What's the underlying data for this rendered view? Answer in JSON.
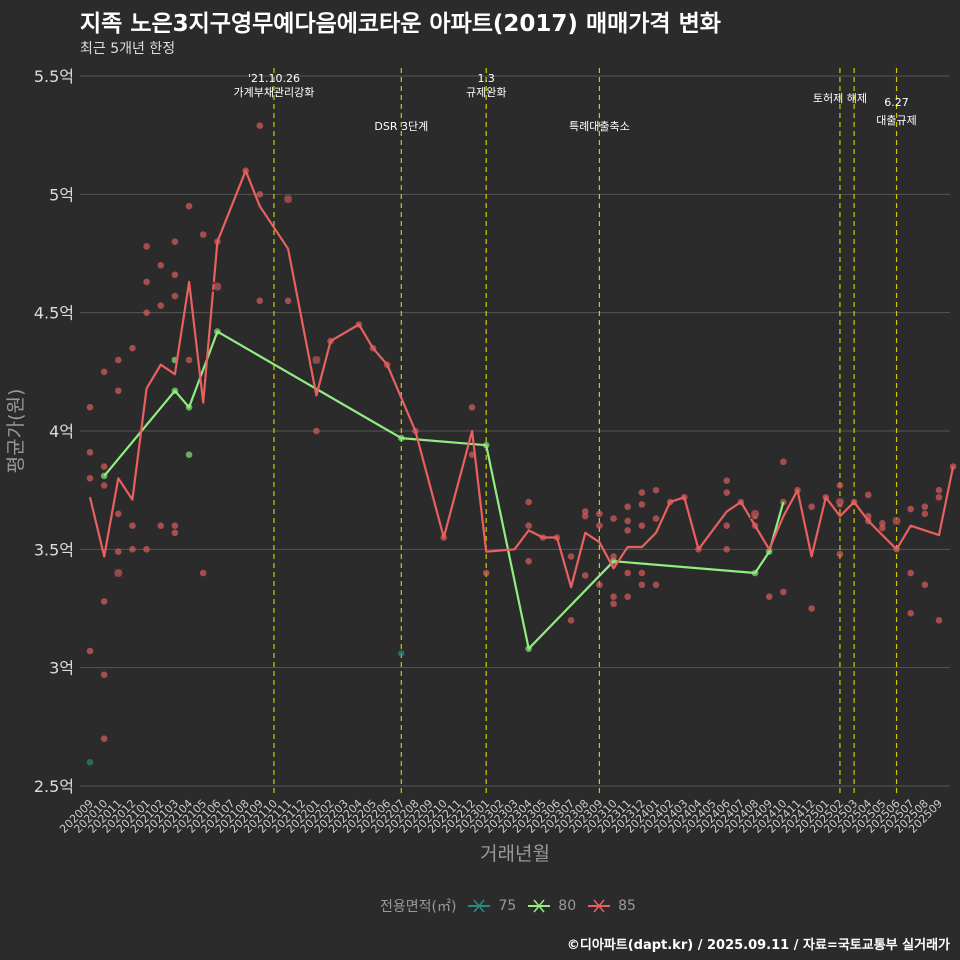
{
  "header": {
    "title": "지족 노은3지구영무예다음에코타운 아파트(2017) 매매가격 변화",
    "subtitle": "최근 5개년 한정"
  },
  "caption": "©디아파트(dapt.kr) / 2025.09.11 / 자료=국토교통부 실거래가",
  "colors": {
    "75": "#2a8a80",
    "80": "#90ee80",
    "85": "#e86060",
    "background": "#2b2b2b",
    "grid": "#555555",
    "event_line": "#cccc00"
  },
  "chart_data": {
    "type": "line",
    "xlabel": "거래년월",
    "ylabel": "평균가(원)",
    "ylim": [
      2.5,
      5.5
    ],
    "y_ticks": [
      "2.5억",
      "3억",
      "3.5억",
      "4억",
      "4.5억",
      "5억",
      "5.5억"
    ],
    "categories": [
      "202009",
      "202010",
      "202011",
      "202012",
      "202101",
      "202102",
      "202103",
      "202104",
      "202105",
      "202106",
      "202107",
      "202108",
      "202109",
      "202110",
      "202111",
      "202112",
      "202201",
      "202202",
      "202203",
      "202204",
      "202205",
      "202206",
      "202207",
      "202208",
      "202209",
      "202210",
      "202211",
      "202212",
      "202301",
      "202302",
      "202303",
      "202304",
      "202305",
      "202306",
      "202307",
      "202308",
      "202309",
      "202310",
      "202311",
      "202312",
      "202401",
      "202402",
      "202403",
      "202404",
      "202405",
      "202406",
      "202407",
      "202408",
      "202409",
      "202410",
      "202411",
      "202412",
      "202501",
      "202502",
      "202503",
      "202504",
      "202505",
      "202506",
      "202507",
      "202508",
      "202509"
    ],
    "legend_title": "전용면적(㎡)",
    "series": [
      {
        "name": "75",
        "line": [],
        "points": [
          [
            0,
            2.6
          ],
          [
            22,
            3.06
          ]
        ],
        "x_marks": []
      },
      {
        "name": "80",
        "line": [
          [
            1,
            3.81
          ],
          [
            6,
            4.17
          ],
          [
            7,
            4.1
          ],
          [
            9,
            4.42
          ],
          [
            22,
            3.97
          ],
          [
            28,
            3.94
          ],
          [
            31,
            3.08
          ],
          [
            37,
            3.45
          ],
          [
            47,
            3.4
          ],
          [
            48,
            3.49
          ],
          [
            49,
            3.7
          ]
        ],
        "points": [
          [
            1,
            3.81
          ],
          [
            6,
            4.17
          ],
          [
            6,
            4.3
          ],
          [
            7,
            4.1
          ],
          [
            7,
            3.9
          ],
          [
            9,
            4.42
          ],
          [
            22,
            3.97
          ],
          [
            28,
            3.94
          ],
          [
            31,
            3.08
          ],
          [
            37,
            3.45
          ],
          [
            47,
            3.4
          ],
          [
            48,
            3.49
          ]
        ],
        "x_marks": []
      },
      {
        "name": "85",
        "line": [
          [
            0,
            3.72
          ],
          [
            1,
            3.47
          ],
          [
            2,
            3.8
          ],
          [
            3,
            3.71
          ],
          [
            4,
            4.18
          ],
          [
            5,
            4.28
          ],
          [
            6,
            4.24
          ],
          [
            7,
            4.63
          ],
          [
            8,
            4.12
          ],
          [
            9,
            4.8
          ],
          [
            11,
            5.1
          ],
          [
            12,
            4.95
          ],
          [
            14,
            4.77
          ],
          [
            16,
            4.15
          ],
          [
            17,
            4.38
          ],
          [
            19,
            4.45
          ],
          [
            20,
            4.35
          ],
          [
            21,
            4.28
          ],
          [
            23,
            4.0
          ],
          [
            25,
            3.55
          ],
          [
            27,
            4.0
          ],
          [
            28,
            3.49
          ],
          [
            30,
            3.5
          ],
          [
            31,
            3.58
          ],
          [
            32,
            3.55
          ],
          [
            33,
            3.55
          ],
          [
            34,
            3.34
          ],
          [
            35,
            3.57
          ],
          [
            36,
            3.53
          ],
          [
            37,
            3.42
          ],
          [
            38,
            3.51
          ],
          [
            39,
            3.51
          ],
          [
            40,
            3.57
          ],
          [
            41,
            3.7
          ],
          [
            42,
            3.72
          ],
          [
            43,
            3.5
          ],
          [
            45,
            3.66
          ],
          [
            46,
            3.7
          ],
          [
            47,
            3.6
          ],
          [
            48,
            3.5
          ],
          [
            49,
            3.64
          ],
          [
            50,
            3.75
          ],
          [
            51,
            3.47
          ],
          [
            52,
            3.72
          ],
          [
            53,
            3.64
          ],
          [
            54,
            3.7
          ],
          [
            55,
            3.62
          ],
          [
            56,
            3.56
          ],
          [
            57,
            3.5
          ],
          [
            58,
            3.6
          ],
          [
            60,
            3.56
          ],
          [
            61,
            3.85
          ]
        ],
        "points": [
          [
            0,
            4.1
          ],
          [
            0,
            3.91
          ],
          [
            0,
            3.8
          ],
          [
            0,
            3.07
          ],
          [
            1,
            4.25
          ],
          [
            1,
            3.85
          ],
          [
            1,
            3.77
          ],
          [
            1,
            3.28
          ],
          [
            1,
            2.97
          ],
          [
            1,
            2.7
          ],
          [
            2,
            4.3
          ],
          [
            2,
            4.17
          ],
          [
            2,
            3.65
          ],
          [
            2,
            3.49
          ],
          [
            3,
            4.35
          ],
          [
            3,
            3.6
          ],
          [
            3,
            3.5
          ],
          [
            4,
            4.78
          ],
          [
            4,
            4.63
          ],
          [
            4,
            4.5
          ],
          [
            4,
            3.5
          ],
          [
            5,
            4.7
          ],
          [
            5,
            4.53
          ],
          [
            5,
            3.6
          ],
          [
            6,
            4.8
          ],
          [
            6,
            4.66
          ],
          [
            6,
            4.57
          ],
          [
            6,
            3.6
          ],
          [
            6,
            3.57
          ],
          [
            7,
            4.95
          ],
          [
            7,
            4.3
          ],
          [
            8,
            4.83
          ],
          [
            8,
            3.4
          ],
          [
            9,
            4.8
          ],
          [
            11,
            5.1
          ],
          [
            12,
            5.29
          ],
          [
            12,
            5.0
          ],
          [
            12,
            4.55
          ],
          [
            14,
            4.55
          ],
          [
            16,
            4.0
          ],
          [
            17,
            4.38
          ],
          [
            19,
            4.45
          ],
          [
            20,
            4.35
          ],
          [
            21,
            4.28
          ],
          [
            23,
            4.0
          ],
          [
            25,
            3.55
          ],
          [
            27,
            4.1
          ],
          [
            27,
            3.9
          ],
          [
            28,
            3.4
          ],
          [
            31,
            3.7
          ],
          [
            31,
            3.6
          ],
          [
            31,
            3.45
          ],
          [
            32,
            3.55
          ],
          [
            33,
            3.55
          ],
          [
            34,
            3.47
          ],
          [
            34,
            3.2
          ],
          [
            35,
            3.66
          ],
          [
            35,
            3.64
          ],
          [
            35,
            3.39
          ],
          [
            36,
            3.65
          ],
          [
            36,
            3.6
          ],
          [
            36,
            3.35
          ],
          [
            37,
            3.63
          ],
          [
            37,
            3.47
          ],
          [
            37,
            3.3
          ],
          [
            37,
            3.27
          ],
          [
            38,
            3.68
          ],
          [
            38,
            3.62
          ],
          [
            38,
            3.58
          ],
          [
            38,
            3.4
          ],
          [
            38,
            3.3
          ],
          [
            39,
            3.74
          ],
          [
            39,
            3.69
          ],
          [
            39,
            3.6
          ],
          [
            39,
            3.4
          ],
          [
            39,
            3.35
          ],
          [
            40,
            3.75
          ],
          [
            40,
            3.63
          ],
          [
            40,
            3.35
          ],
          [
            41,
            3.7
          ],
          [
            42,
            3.72
          ],
          [
            43,
            3.5
          ],
          [
            45,
            3.79
          ],
          [
            45,
            3.74
          ],
          [
            45,
            3.6
          ],
          [
            45,
            3.5
          ],
          [
            46,
            3.7
          ],
          [
            47,
            3.64
          ],
          [
            47,
            3.6
          ],
          [
            48,
            3.3
          ],
          [
            49,
            3.87
          ],
          [
            49,
            3.7
          ],
          [
            49,
            3.32
          ],
          [
            50,
            3.75
          ],
          [
            51,
            3.68
          ],
          [
            51,
            3.25
          ],
          [
            52,
            3.72
          ],
          [
            53,
            3.77
          ],
          [
            53,
            3.69
          ],
          [
            53,
            3.48
          ],
          [
            54,
            3.7
          ],
          [
            55,
            3.73
          ],
          [
            55,
            3.64
          ],
          [
            55,
            3.62
          ],
          [
            56,
            3.61
          ],
          [
            56,
            3.59
          ],
          [
            57,
            3.5
          ],
          [
            58,
            3.67
          ],
          [
            58,
            3.4
          ],
          [
            58,
            3.23
          ],
          [
            59,
            3.68
          ],
          [
            59,
            3.65
          ],
          [
            59,
            3.35
          ],
          [
            60,
            3.75
          ],
          [
            60,
            3.72
          ],
          [
            60,
            3.2
          ],
          [
            61,
            3.85
          ]
        ],
        "x_marks": [
          [
            2,
            3.4
          ],
          [
            9,
            4.61
          ],
          [
            14,
            4.98
          ],
          [
            16,
            4.3
          ],
          [
            47,
            3.65
          ],
          [
            53,
            3.7
          ],
          [
            57,
            3.62
          ]
        ]
      }
    ],
    "events": [
      {
        "x": 13,
        "lines": [
          "'21.10.26",
          "가계부채관리강화"
        ],
        "level": 0
      },
      {
        "x": 22,
        "lines": [
          "DSR 3단계"
        ],
        "level": 2
      },
      {
        "x": 28,
        "lines": [
          "1.3",
          "규제완화"
        ],
        "level": 0
      },
      {
        "x": 36,
        "lines": [
          "특례대출축소"
        ],
        "level": 2
      },
      {
        "x": 53,
        "lines": [
          "토허제 해제"
        ],
        "level": 1
      },
      {
        "x": 54,
        "lines": [],
        "level": 1
      },
      {
        "x": 57,
        "lines": [
          "6.27",
          "대출규제"
        ],
        "level": 3
      }
    ]
  }
}
